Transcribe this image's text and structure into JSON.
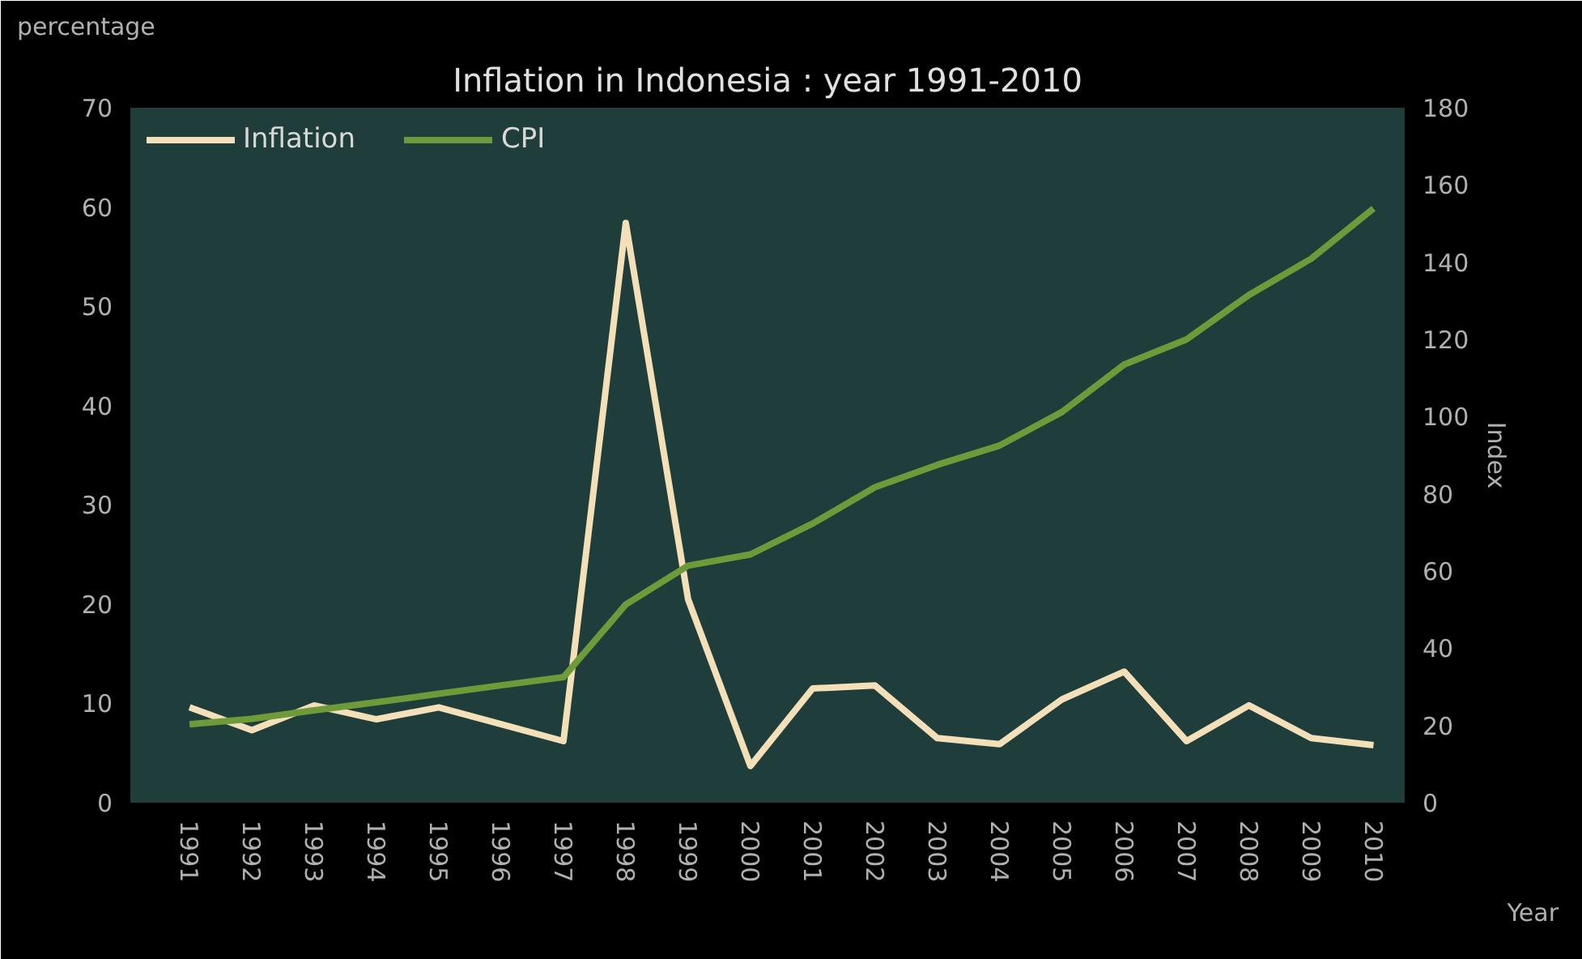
{
  "chart_data": {
    "type": "line",
    "title": "Inflation in Indonesia : year 1991-2010",
    "ylabel": "percentage",
    "y2label": "Index",
    "xlabel": "Year",
    "categories": [
      "1991",
      "1992",
      "1993",
      "1994",
      "1995",
      "1996",
      "1997",
      "1998",
      "1999",
      "2000",
      "2001",
      "2002",
      "2003",
      "2004",
      "2005",
      "2006",
      "2007",
      "2008",
      "2009",
      "2010"
    ],
    "series": [
      {
        "name": "Inflation",
        "color": "#f3dfb8",
        "values": [
          9.6,
          7.3,
          9.8,
          8.4,
          9.6,
          7.9,
          6.2,
          58.4,
          20.5,
          3.7,
          11.5,
          11.8,
          6.5,
          5.9,
          10.4,
          13.2,
          6.2,
          9.8,
          6.5,
          5.8
        ]
      },
      {
        "name": "CPI",
        "color": "#6f9a3a",
        "axis": "y2",
        "values": [
          20.3,
          21.7,
          23.9,
          26.0,
          28.2,
          30.4,
          32.5,
          51.3,
          61.4,
          64.3,
          72.3,
          81.7,
          87.5,
          92.5,
          101.2,
          113.5,
          120,
          131.5,
          140.9,
          153.9
        ]
      }
    ],
    "ylim": [
      0,
      70
    ],
    "yticks": [
      0,
      10,
      20,
      30,
      40,
      50,
      60,
      70
    ],
    "y2lim": [
      0,
      180
    ],
    "y2ticks": [
      0,
      20,
      40,
      60,
      80,
      100,
      120,
      140,
      160,
      180
    ],
    "legend": "top left",
    "grid": false,
    "marker": "none",
    "line_style": "solid"
  }
}
